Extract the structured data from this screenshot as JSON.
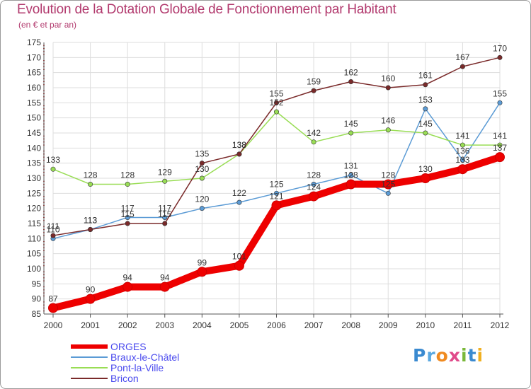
{
  "chart_data": {
    "type": "line",
    "title": "Evolution de la Dotation Globale de Fonctionnement par Habitant",
    "subtitle": "(en € et par an)",
    "xlabel": "",
    "ylabel": "",
    "categories": [
      "2000",
      "2001",
      "2002",
      "2003",
      "2004",
      "2005",
      "2006",
      "2007",
      "2008",
      "2009",
      "2010",
      "2011",
      "2012"
    ],
    "ylim": [
      85,
      175
    ],
    "yticks": [
      85,
      90,
      95,
      100,
      105,
      110,
      115,
      120,
      125,
      130,
      135,
      140,
      145,
      150,
      155,
      160,
      165,
      170,
      175
    ],
    "grid": true,
    "legend_position": "bottom-left",
    "series": [
      {
        "name": "ORGES",
        "color": "#ee0000",
        "values": [
          87,
          90,
          94,
          94,
          99,
          101,
          121,
          124,
          128,
          128,
          130,
          133,
          137
        ],
        "labels": [
          "87",
          "90",
          "94",
          "94",
          "99",
          "101",
          "121",
          "124",
          "128",
          "128",
          "130",
          "133",
          "137"
        ]
      },
      {
        "name": "Braux-le-Châtel",
        "color": "#5b9bd5",
        "values": [
          110,
          113,
          117,
          117,
          120,
          122,
          125,
          128,
          131,
          125,
          153,
          136,
          155
        ],
        "labels": [
          "110",
          "113",
          "117",
          "117",
          "120",
          "122",
          "125",
          "128",
          "131",
          "125",
          "153",
          "136",
          "155"
        ]
      },
      {
        "name": "Pont-la-Ville",
        "color": "#99dd55",
        "values": [
          133,
          128,
          128,
          129,
          130,
          138,
          152,
          142,
          145,
          146,
          145,
          141,
          141
        ],
        "labels": [
          "133",
          "128",
          "128",
          "129",
          "130",
          "138",
          "152",
          "142",
          "145",
          "146",
          "145",
          "141",
          "141"
        ]
      },
      {
        "name": "Bricon",
        "color": "#7a2a2a",
        "values": [
          111,
          113,
          115,
          115,
          135,
          138,
          155,
          159,
          162,
          160,
          161,
          167,
          170
        ],
        "labels": [
          "111",
          "113",
          "115",
          "115",
          "135",
          "138",
          "155",
          "159",
          "162",
          "160",
          "161",
          "167",
          "170"
        ]
      }
    ]
  },
  "legend": {
    "items": [
      "ORGES",
      "Braux-le-Châtel",
      "Pont-la-Ville",
      "Bricon"
    ],
    "text_color": "#4a4aee"
  },
  "logo": {
    "text": "Proxiti",
    "letters": [
      {
        "ch": "P",
        "color": "#3a8ad0"
      },
      {
        "ch": "r",
        "color": "#5aa8e0"
      },
      {
        "ch": "o",
        "color": "#f08a20"
      },
      {
        "ch": "x",
        "color": "#e04a8a"
      },
      {
        "ch": "i",
        "color": "#7ab83a"
      },
      {
        "ch": "t",
        "color": "#3a8ad0"
      },
      {
        "ch": "i",
        "color": "#f0b020"
      }
    ]
  }
}
